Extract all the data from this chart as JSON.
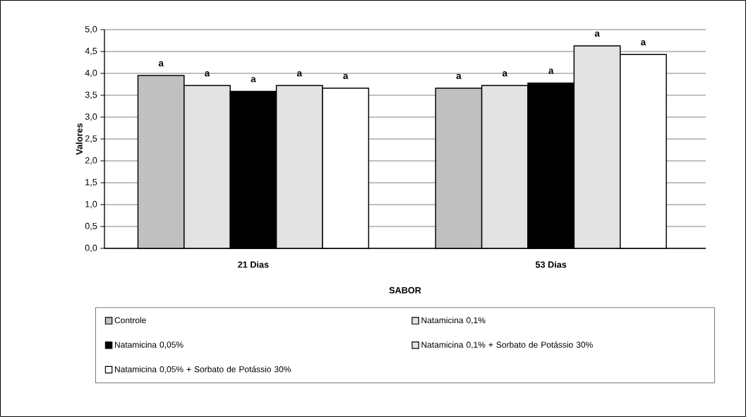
{
  "chart_data": {
    "type": "bar",
    "xlabel": "SABOR",
    "ylabel": "Valores",
    "categories": [
      "21 Dias",
      "53 Dias"
    ],
    "series": [
      {
        "name": "Controle",
        "color": "#c0c0c0",
        "values": [
          3.95,
          3.66
        ],
        "value_labels": [
          "a",
          "a"
        ]
      },
      {
        "name": "Natamicina 0,1%",
        "color": "#e3e3e3",
        "values": [
          3.72,
          3.72
        ],
        "value_labels": [
          "a",
          "a"
        ]
      },
      {
        "name": "Natamicina 0,05%",
        "color": "#000000",
        "values": [
          3.59,
          3.78
        ],
        "value_labels": [
          "a",
          "a"
        ]
      },
      {
        "name": "Natamicina 0,1% + Sorbato de Potássio 30%",
        "color": "#e3e3e3",
        "values": [
          3.72,
          4.63
        ],
        "value_labels": [
          "a",
          "a"
        ]
      },
      {
        "name": "Natamicina 0,05% + Sorbato de Potássio 30%",
        "color": "#ffffff",
        "values": [
          3.66,
          4.43
        ],
        "value_labels": [
          "a",
          "a"
        ]
      }
    ],
    "ylim": [
      0,
      5
    ],
    "yticks": [
      {
        "value": 0,
        "label": "0,0"
      },
      {
        "value": 0.5,
        "label": "0,5"
      },
      {
        "value": 1,
        "label": "1,0"
      },
      {
        "value": 1.5,
        "label": "1,5"
      },
      {
        "value": 2,
        "label": "2,0"
      },
      {
        "value": 2.5,
        "label": "2,5"
      },
      {
        "value": 3,
        "label": "3,0"
      },
      {
        "value": 3.5,
        "label": "3,5"
      },
      {
        "value": 4,
        "label": "4,0"
      },
      {
        "value": 4.5,
        "label": "4,5"
      },
      {
        "value": 5,
        "label": "5,0"
      }
    ],
    "grid": "y",
    "legend": "bottom"
  }
}
